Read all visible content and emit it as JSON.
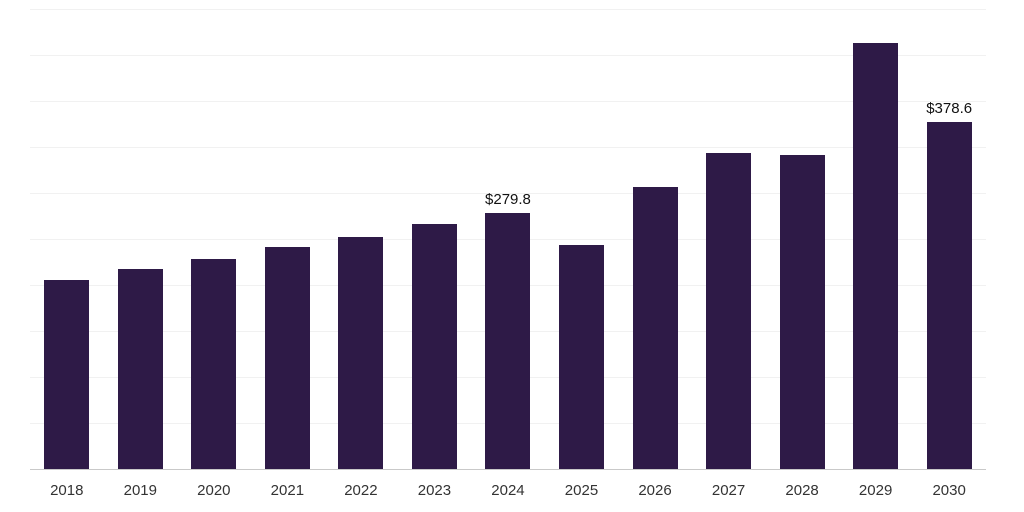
{
  "chart_data": {
    "type": "bar",
    "title": "",
    "xlabel": "",
    "ylabel": "",
    "categories": [
      "2018",
      "2019",
      "2020",
      "2021",
      "2022",
      "2023",
      "2024",
      "2025",
      "2026",
      "2027",
      "2028",
      "2029",
      "2030"
    ],
    "values": [
      207,
      218,
      229,
      242,
      253,
      267,
      279.8,
      245,
      308,
      345,
      342,
      464,
      378.6
    ],
    "value_labels": [
      "",
      "",
      "",
      "",
      "",
      "",
      "$279.8",
      "",
      "",
      "",
      "",
      "",
      "$378.6"
    ],
    "ylim": [
      0,
      500
    ],
    "grid_step": 50,
    "grid": "horizontal",
    "legend_position": "none",
    "bar_color": "#2e1a47",
    "grid_color": "#f1f1f1",
    "axis_line_color": "#c9c9c9",
    "tick_label_color": "#333333",
    "annotation_color": "#111111"
  }
}
